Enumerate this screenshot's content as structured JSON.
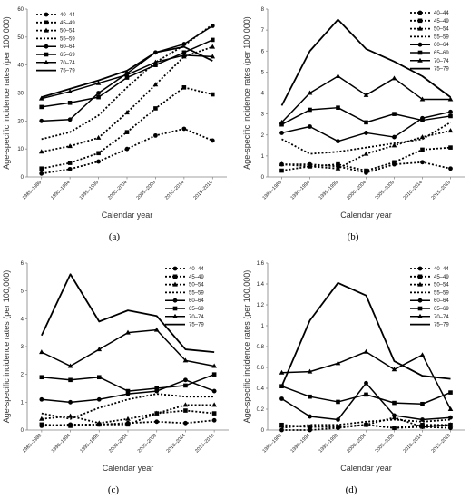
{
  "figure": {
    "panels": [
      "(a)",
      "(b)",
      "(c)",
      "(d)"
    ],
    "colors": {
      "line": "#000000",
      "axis": "#808080",
      "text": "#222222"
    }
  },
  "chart_data": [
    {
      "type": "line",
      "panel": "(a)",
      "xlabel": "Calendar year",
      "ylabel": "Age-specific incidence rates (per 100,000)",
      "ylim": [
        0,
        60
      ],
      "yticks": [
        0,
        10,
        20,
        30,
        40,
        50,
        60
      ],
      "categories": [
        "1985–1989",
        "1990–1994",
        "1995–1999",
        "2000–2004",
        "2005–2009",
        "2010–2014",
        "2015–2019"
      ],
      "legend": "top-left",
      "series": [
        {
          "name": "40–44",
          "values": [
            1.2,
            2.8,
            5.5,
            10,
            14.8,
            17.2,
            13
          ]
        },
        {
          "name": "45–49",
          "values": [
            3,
            5,
            8.5,
            16,
            24.5,
            32,
            29.5
          ]
        },
        {
          "name": "50–54",
          "values": [
            9,
            11,
            14,
            23,
            33,
            43,
            46.5
          ]
        },
        {
          "name": "55–59",
          "values": [
            13.5,
            16,
            22,
            32,
            41,
            47,
            54.5
          ]
        },
        {
          "name": "60–64",
          "values": [
            20,
            20.5,
            30,
            37,
            44.5,
            47.5,
            54
          ]
        },
        {
          "name": "65–69",
          "values": [
            25,
            26.5,
            28.5,
            35.5,
            40,
            44.5,
            49
          ]
        },
        {
          "name": "70–74",
          "values": [
            28,
            30.5,
            33.5,
            36.5,
            41,
            43.5,
            43
          ]
        },
        {
          "name": "75–79",
          "values": [
            28.5,
            31.5,
            34.5,
            38,
            44.5,
            46.5,
            41.5
          ]
        }
      ]
    },
    {
      "type": "line",
      "panel": "(b)",
      "xlabel": "Calendar year",
      "ylabel": "Age-specific  incidence rates (per 100,000)",
      "ylim": [
        0,
        8
      ],
      "yticks": [
        0,
        1,
        2,
        3,
        4,
        5,
        6,
        7,
        8
      ],
      "categories": [
        "1985–1989",
        "1990–1994",
        "1995–1999",
        "2000–2004",
        "2005–2009",
        "2010–2014",
        "2015–2019"
      ],
      "legend": "top-right",
      "series": [
        {
          "name": "40–44",
          "values": [
            0.6,
            0.6,
            0.5,
            0.2,
            0.6,
            0.7,
            0.4
          ]
        },
        {
          "name": "45–49",
          "values": [
            0.3,
            0.5,
            0.6,
            0.3,
            0.7,
            1.3,
            1.4
          ]
        },
        {
          "name": "50–54",
          "values": [
            0.6,
            0.5,
            0.4,
            1.1,
            1.5,
            1.9,
            2.2
          ]
        },
        {
          "name": "55–59",
          "values": [
            1.8,
            1.1,
            1.2,
            1.4,
            1.6,
            1.8,
            2.6
          ]
        },
        {
          "name": "60–64",
          "values": [
            2.1,
            2.4,
            1.7,
            2.1,
            1.9,
            2.8,
            3.1
          ]
        },
        {
          "name": "65–69",
          "values": [
            2.5,
            3.2,
            3.3,
            2.6,
            3.0,
            2.7,
            2.9
          ]
        },
        {
          "name": "70–74",
          "values": [
            2.6,
            4.0,
            4.8,
            3.9,
            4.7,
            3.7,
            3.7
          ]
        },
        {
          "name": "75–79",
          "values": [
            3.4,
            6.0,
            7.5,
            6.1,
            5.5,
            4.8,
            3.8
          ]
        }
      ]
    },
    {
      "type": "line",
      "panel": "(c)",
      "xlabel": "Calendar year",
      "ylabel": "Age-specific  incidence rates (per 100,000)",
      "ylim": [
        0,
        6
      ],
      "yticks": [
        0,
        1,
        2,
        3,
        4,
        5,
        6
      ],
      "categories": [
        "1985–1989",
        "1990–1994",
        "1995–1999",
        "2000–2004",
        "2005–2009",
        "2010–2014",
        "2015–2019"
      ],
      "legend": "top-right",
      "series": [
        {
          "name": "40–44",
          "values": [
            0.15,
            0.2,
            0.2,
            0.25,
            0.3,
            0.25,
            0.35
          ]
        },
        {
          "name": "45–49",
          "values": [
            0.2,
            0.15,
            0.2,
            0.2,
            0.6,
            0.7,
            0.6
          ]
        },
        {
          "name": "50–54",
          "values": [
            0.4,
            0.5,
            0.25,
            0.4,
            0.6,
            0.9,
            0.9
          ]
        },
        {
          "name": "55–59",
          "values": [
            0.6,
            0.4,
            0.8,
            1.1,
            1.3,
            1.2,
            1.2
          ]
        },
        {
          "name": "60–64",
          "values": [
            1.1,
            1.0,
            1.1,
            1.3,
            1.4,
            1.8,
            1.4
          ]
        },
        {
          "name": "65–69",
          "values": [
            1.9,
            1.8,
            1.9,
            1.4,
            1.5,
            1.6,
            2.0
          ]
        },
        {
          "name": "70–74",
          "values": [
            2.8,
            2.3,
            2.9,
            3.5,
            3.6,
            2.5,
            2.3
          ]
        },
        {
          "name": "75–79",
          "values": [
            3.4,
            5.6,
            3.9,
            4.3,
            4.1,
            2.9,
            2.8
          ]
        }
      ]
    },
    {
      "type": "line",
      "panel": "(d)",
      "xlabel": "Calendar year",
      "ylabel": "Age-specific incidence rates (per 100,000)",
      "ylim": [
        0,
        1.6
      ],
      "yticks": [
        0,
        0.2,
        0.4,
        0.6,
        0.8,
        1.0,
        1.2,
        1.4,
        1.6
      ],
      "ytickLabels": [
        "0",
        "0.2",
        "0.4",
        "0.6",
        "0.8",
        "1",
        "1.2",
        "1.4",
        "1.6"
      ],
      "categories": [
        "1985–1989",
        "1990–1994",
        "1995–1999",
        "2000–2004",
        "2005–2009",
        "2010–2014",
        "2015–2019"
      ],
      "legend": "top-right",
      "series": [
        {
          "name": "40–44",
          "values": [
            0.0,
            0.0,
            0.02,
            0.05,
            0.02,
            0.03,
            0.02
          ]
        },
        {
          "name": "45–49",
          "values": [
            0.05,
            0.03,
            0.03,
            0.05,
            0.02,
            0.05,
            0.05
          ]
        },
        {
          "name": "50–54",
          "values": [
            0.04,
            0.03,
            0.03,
            0.05,
            0.12,
            0.03,
            0.05
          ]
        },
        {
          "name": "55–59",
          "values": [
            0.02,
            0.05,
            0.05,
            0.08,
            0.1,
            0.08,
            0.1
          ]
        },
        {
          "name": "60–64",
          "values": [
            0.3,
            0.13,
            0.1,
            0.45,
            0.14,
            0.1,
            0.12
          ]
        },
        {
          "name": "65–69",
          "values": [
            0.42,
            0.32,
            0.27,
            0.34,
            0.26,
            0.25,
            0.36
          ]
        },
        {
          "name": "70–74",
          "values": [
            0.55,
            0.56,
            0.64,
            0.75,
            0.58,
            0.72,
            0.2
          ]
        },
        {
          "name": "75–79",
          "values": [
            0.42,
            1.05,
            1.41,
            1.29,
            0.66,
            0.52,
            0.49
          ]
        }
      ]
    }
  ]
}
